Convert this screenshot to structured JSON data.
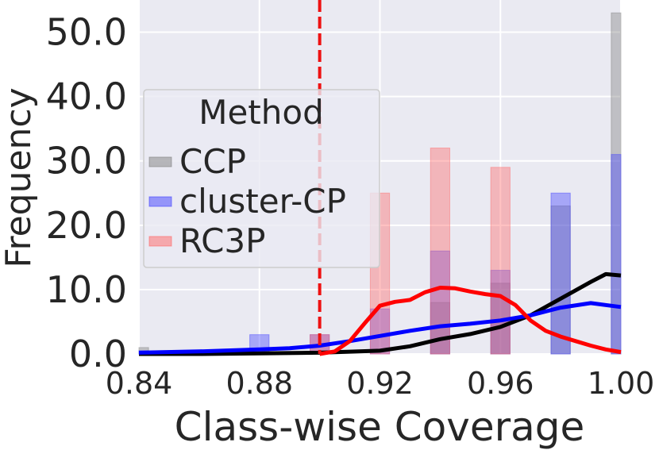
{
  "chart_data": {
    "type": "bar",
    "title": "",
    "xlabel": "Class-wise Coverage",
    "ylabel": "Frequency",
    "xlim": [
      0.84,
      1.0
    ],
    "ylim": [
      0,
      55
    ],
    "xticks": [
      0.84,
      0.88,
      0.92,
      0.96,
      1.0
    ],
    "xtick_labels": [
      "0.84",
      "0.88",
      "0.92",
      "0.96",
      "1.00"
    ],
    "yticks": [
      0,
      10,
      20,
      30,
      40,
      50
    ],
    "ytick_labels": [
      "0.0",
      "10.0",
      "20.0",
      "30.0",
      "40.0",
      "50.0"
    ],
    "grid": true,
    "bin_width": 0.0064,
    "legend": {
      "title": "Method",
      "placement": "upper-left",
      "entries": [
        "CCP",
        "cluster-CP",
        "RC3P"
      ]
    },
    "reference_line": {
      "x": 0.9,
      "color": "#ee1111",
      "style": "dashed"
    },
    "series": [
      {
        "name": "CCP",
        "color": "#808080",
        "kde_color": "#000000",
        "bins": [
          {
            "x": 0.84,
            "count": 1
          },
          {
            "x": 0.94,
            "count": 8
          },
          {
            "x": 0.96,
            "count": 11
          },
          {
            "x": 0.98,
            "count": 23
          },
          {
            "x": 1.0,
            "count": 53
          }
        ],
        "kde": [
          [
            0.84,
            0
          ],
          [
            0.86,
            0
          ],
          [
            0.88,
            0.1
          ],
          [
            0.9,
            0.2
          ],
          [
            0.92,
            0.5
          ],
          [
            0.93,
            1.2
          ],
          [
            0.94,
            2.3
          ],
          [
            0.95,
            3.1
          ],
          [
            0.96,
            4.2
          ],
          [
            0.97,
            6.0
          ],
          [
            0.98,
            8.6
          ],
          [
            0.99,
            11.2
          ],
          [
            0.995,
            12.4
          ],
          [
            1.0,
            12.2
          ]
        ]
      },
      {
        "name": "cluster-CP",
        "color": "#4040ff",
        "kde_color": "#0000ff",
        "bins": [
          {
            "x": 0.84,
            "count": 0.5
          },
          {
            "x": 0.86,
            "count": 0.5
          },
          {
            "x": 0.88,
            "count": 3
          },
          {
            "x": 0.9,
            "count": 3
          },
          {
            "x": 0.92,
            "count": 7
          },
          {
            "x": 0.94,
            "count": 16
          },
          {
            "x": 0.96,
            "count": 13
          },
          {
            "x": 0.98,
            "count": 25
          },
          {
            "x": 1.0,
            "count": 31
          }
        ],
        "kde": [
          [
            0.84,
            0.2
          ],
          [
            0.86,
            0.4
          ],
          [
            0.88,
            0.7
          ],
          [
            0.89,
            0.9
          ],
          [
            0.9,
            1.3
          ],
          [
            0.91,
            2.0
          ],
          [
            0.92,
            2.8
          ],
          [
            0.93,
            3.6
          ],
          [
            0.94,
            4.3
          ],
          [
            0.95,
            4.7
          ],
          [
            0.96,
            5.2
          ],
          [
            0.97,
            6.0
          ],
          [
            0.98,
            7.2
          ],
          [
            0.99,
            7.9
          ],
          [
            1.0,
            7.3
          ]
        ]
      },
      {
        "name": "RC3P",
        "color": "#ff6666",
        "kde_color": "#ff0000",
        "bins": [
          {
            "x": 0.9,
            "count": 3
          },
          {
            "x": 0.92,
            "count": 25
          },
          {
            "x": 0.94,
            "count": 32
          },
          {
            "x": 0.96,
            "count": 29
          }
        ],
        "kde": [
          [
            0.9,
            0
          ],
          [
            0.905,
            0.4
          ],
          [
            0.91,
            2.0
          ],
          [
            0.915,
            4.8
          ],
          [
            0.92,
            7.5
          ],
          [
            0.925,
            8.1
          ],
          [
            0.93,
            8.4
          ],
          [
            0.935,
            9.6
          ],
          [
            0.94,
            10.3
          ],
          [
            0.945,
            10.2
          ],
          [
            0.95,
            9.7
          ],
          [
            0.955,
            9.3
          ],
          [
            0.96,
            9.0
          ],
          [
            0.965,
            7.6
          ],
          [
            0.97,
            5.2
          ],
          [
            0.975,
            3.6
          ],
          [
            0.98,
            2.7
          ],
          [
            0.985,
            2.0
          ],
          [
            0.99,
            1.3
          ],
          [
            0.995,
            0.7
          ],
          [
            1.0,
            0.3
          ]
        ]
      }
    ]
  }
}
